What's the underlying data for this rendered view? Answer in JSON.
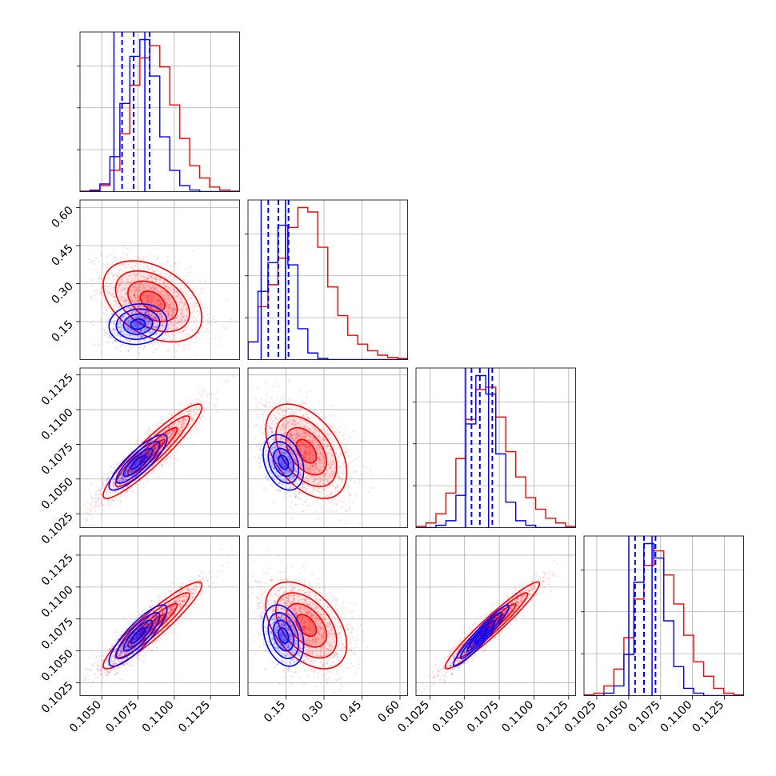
{
  "chart_data": {
    "type": "corner",
    "grid": true,
    "series": [
      {
        "color": "#ff0000",
        "hist": {
          "p0": [
            0.3,
            1,
            4,
            14,
            38,
            70,
            88,
            96,
            82,
            57,
            35,
            17,
            9,
            3,
            1,
            0.3
          ],
          "p1": [
            8,
            24,
            34,
            46,
            60,
            69,
            67,
            51,
            33,
            20,
            11,
            7,
            4,
            2,
            1,
            0.5
          ],
          "p2": [
            0.5,
            2,
            6,
            15,
            30,
            47,
            60,
            61,
            48,
            33,
            22,
            13,
            8,
            4,
            2,
            0.5
          ],
          "p3": [
            0.3,
            1,
            4,
            11,
            24,
            40,
            54,
            60,
            50,
            38,
            25,
            14,
            8,
            3,
            1,
            0.3
          ]
        },
        "center": {
          "p0": 0.1085,
          "p1": 0.23,
          "p2": 0.107,
          "p3": 0.107
        },
        "sigma": {
          "p0": 0.0017,
          "p1": 0.08,
          "p2": 0.0017,
          "p3": 0.0017
        }
      },
      {
        "color": "#0000ff",
        "hist": {
          "p0": [
            0,
            0.5,
            5,
            23,
            58,
            89,
            100,
            76,
            36,
            14,
            4,
            1,
            0,
            0,
            0,
            0
          ],
          "p1": [
            8,
            31,
            44,
            61,
            43,
            14,
            3,
            0.5,
            0,
            0,
            0,
            0,
            0,
            0,
            0,
            0
          ],
          "p2": [
            0,
            0,
            1,
            3,
            14,
            45,
            66,
            58,
            32,
            11,
            3,
            1,
            0,
            0,
            0,
            0
          ],
          "p3": [
            0,
            0,
            1,
            4,
            17,
            47,
            63,
            57,
            31,
            12,
            3,
            1,
            0,
            0,
            0,
            0
          ]
        },
        "center": {
          "p0": 0.1075,
          "p1": 0.14,
          "p2": 0.1062,
          "p3": 0.1062
        },
        "sigma": {
          "p0": 0.001,
          "p1": 0.04,
          "p2": 0.001,
          "p3": 0.0012
        },
        "quantiles": {
          "p0": [
            0.1064,
            0.1072,
            0.1083
          ],
          "p1": [
            0.08,
            0.12,
            0.16
          ],
          "p2": [
            0.1055,
            0.1061,
            0.107
          ],
          "p3": [
            0.1055,
            0.1062,
            0.1071
          ]
        }
      }
    ],
    "params": [
      {
        "key": "p0",
        "range": [
          0.1035,
          0.1145
        ],
        "ticks": [
          "0.1050",
          "0.1075",
          "0.1100",
          "0.1125"
        ],
        "tick_values": [
          0.105,
          0.1075,
          0.11,
          0.1125
        ]
      },
      {
        "key": "p1",
        "range": [
          0.0,
          0.63
        ],
        "ticks": [
          "0.15",
          "0.30",
          "0.45",
          "0.60"
        ],
        "tick_values": [
          0.15,
          0.3,
          0.45,
          0.6
        ]
      },
      {
        "key": "p2",
        "range": [
          0.1015,
          0.113
        ],
        "ticks": [
          "0.1025",
          "0.1050",
          "0.1075",
          "0.1100",
          "0.1125"
        ],
        "tick_values": [
          0.1025,
          0.105,
          0.1075,
          0.11,
          0.1125
        ]
      },
      {
        "key": "p3",
        "range": [
          0.1015,
          0.114
        ],
        "ticks": [
          "0.1025",
          "0.1050",
          "0.1075",
          "0.1100",
          "0.1125"
        ],
        "tick_values": [
          0.1025,
          0.105,
          0.1075,
          0.11,
          0.1125
        ]
      }
    ],
    "correlations": {
      "p1|p0": {
        "red": -0.4,
        "blue": 0.1
      },
      "p2|p0": {
        "red": 0.93,
        "blue": 0.85
      },
      "p2|p1": {
        "red": -0.45,
        "blue": -0.3
      },
      "p3|p0": {
        "red": 0.93,
        "blue": 0.85
      },
      "p3|p1": {
        "red": -0.45,
        "blue": -0.3
      },
      "p3|p2": {
        "red": 0.96,
        "blue": 0.95
      }
    }
  }
}
